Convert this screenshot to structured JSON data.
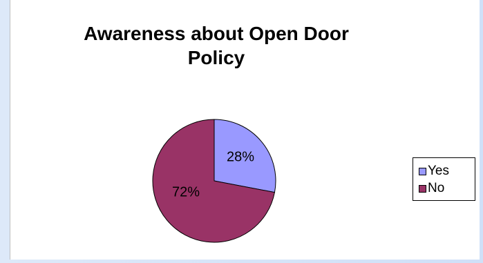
{
  "chart_data": {
    "type": "pie",
    "title_lines": [
      "Awareness about Open Door",
      "Policy"
    ],
    "categories": [
      "Yes",
      "No"
    ],
    "values": [
      28,
      72
    ],
    "data_labels": [
      "28%",
      "72%"
    ],
    "colors": [
      "#9999ff",
      "#993366"
    ],
    "legend_position": "right"
  }
}
